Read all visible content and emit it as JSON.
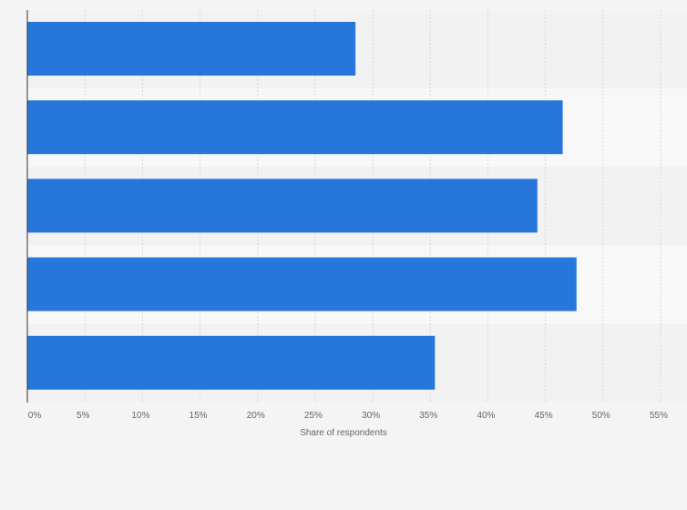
{
  "chart_data": {
    "type": "bar",
    "orientation": "horizontal",
    "categories": [
      "",
      "",
      "",
      "",
      ""
    ],
    "values": [
      28.5,
      46.5,
      44.3,
      47.7,
      35.4
    ],
    "title": "",
    "xlabel": "Share of respondents",
    "ylabel": "",
    "xlim": [
      0,
      55
    ],
    "ticks": [
      "0%",
      "5%",
      "10%",
      "15%",
      "20%",
      "25%",
      "30%",
      "35%",
      "40%",
      "45%",
      "50%",
      "55%"
    ],
    "grid": true,
    "bar_color": "#2776db",
    "band_colors": [
      "#f2f2f2",
      "#f8f8f8"
    ]
  }
}
